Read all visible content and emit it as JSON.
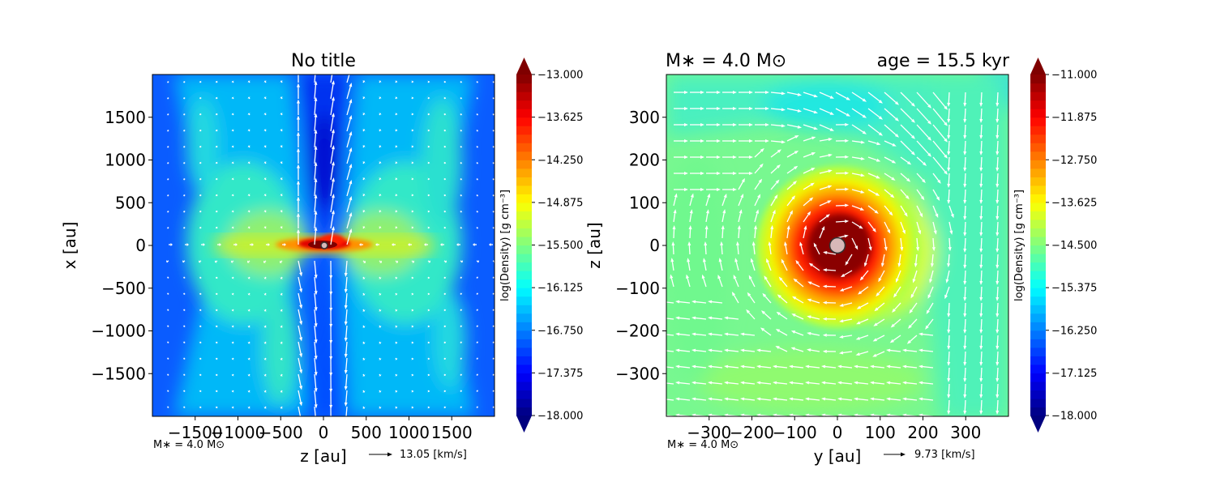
{
  "chart_data": [
    {
      "type": "heatmap",
      "title": "No title",
      "xlabel": "z [au]",
      "ylabel": "x [au]",
      "xlim": [
        -2000,
        2000
      ],
      "ylim": [
        -2000,
        2000
      ],
      "xticks": [
        -1500,
        -1000,
        -500,
        0,
        500,
        1000,
        1500
      ],
      "xtick_labels": [
        "−1500",
        "−1000",
        "−500",
        "0",
        "500",
        "1000",
        "1500"
      ],
      "yticks": [
        1500,
        1000,
        500,
        0,
        -500,
        -1000,
        -1500
      ],
      "ytick_labels": [
        "1500",
        "1000",
        "500",
        "0",
        "−500",
        "−1000",
        "−1500"
      ],
      "colorbar": {
        "label": "log(Density) [g cm⁻³]",
        "range": [
          -18.0,
          -13.0
        ],
        "ticks": [
          -13.0,
          -13.625,
          -14.25,
          -14.875,
          -15.5,
          -16.125,
          -16.75,
          -17.375,
          -18.0
        ],
        "tick_labels": [
          "−13.000",
          "−13.625",
          "−14.250",
          "−14.875",
          "−15.500",
          "−16.125",
          "−16.750",
          "−17.375",
          "−18.000"
        ],
        "extend": "both",
        "colormap": "jet"
      },
      "field_description": "Edge-on density slice: dense disk along z=0 midplane with bipolar low-density outflow cavity along x axis",
      "vector_field": "velocity arrows (quiver), outflow directed outward along x",
      "reference_arrow_label": "13.05 [km/s]",
      "annotation": "M∗ = 4.0 M⊙",
      "sink_particle": {
        "x": 0,
        "y": 0
      }
    },
    {
      "type": "heatmap",
      "title_left": "M∗ = 4.0 M⊙",
      "title_right": "age = 15.5 kyr",
      "xlabel": "y [au]",
      "ylabel": "z [au]",
      "xlim": [
        -400,
        400
      ],
      "ylim": [
        -400,
        400
      ],
      "xticks": [
        -300,
        -200,
        -100,
        0,
        100,
        200,
        300
      ],
      "xtick_labels": [
        "−300",
        "−200",
        "−100",
        "0",
        "100",
        "200",
        "300"
      ],
      "yticks": [
        300,
        200,
        100,
        0,
        -100,
        -200,
        -300
      ],
      "ytick_labels": [
        "300",
        "200",
        "100",
        "0",
        "−100",
        "−200",
        "−300"
      ],
      "colorbar": {
        "label": "log(Density) [g cm⁻³]",
        "range": [
          -18.0,
          -11.0
        ],
        "ticks": [
          -11.0,
          -11.875,
          -12.75,
          -13.625,
          -14.5,
          -15.375,
          -16.25,
          -17.125,
          -18.0
        ],
        "tick_labels": [
          "−11.000",
          "−11.875",
          "−12.750",
          "−13.625",
          "−14.500",
          "−15.375",
          "−16.250",
          "−17.125",
          "−18.000"
        ],
        "extend": "both",
        "colormap": "jet"
      },
      "field_description": "Face-on density slice: dense rotating core centered at origin with spiral arm extending toward upper right",
      "vector_field": "velocity arrows (quiver), counter-clockwise rotation around center",
      "reference_arrow_label": "9.73 [km/s]",
      "annotation": "M∗ = 4.0 M⊙",
      "sink_particle": {
        "x": 0,
        "y": 0
      }
    }
  ]
}
